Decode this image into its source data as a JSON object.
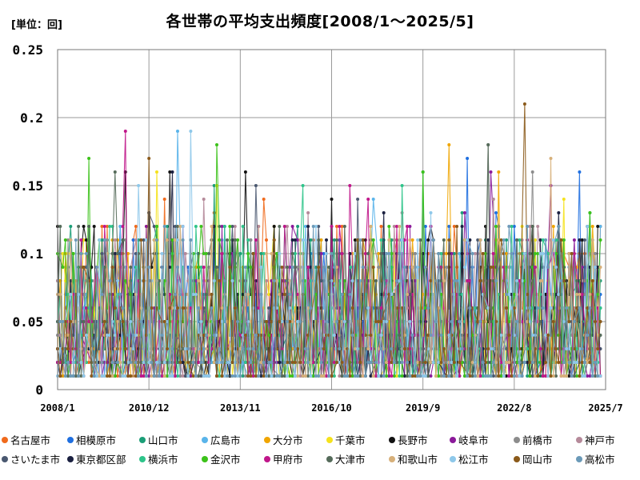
{
  "header": {
    "unit": "[単位：回]",
    "title": "各世帯の平均支出頻度[2008/1～2025/5]"
  },
  "chart_data": {
    "type": "line",
    "title": "各世帯の平均支出頻度[2008/1～2025/5]",
    "unit": "[単位：回]",
    "x_range": [
      "2008/1",
      "2025/7"
    ],
    "x_ticks": [
      "2008/1",
      "2010/12",
      "2013/11",
      "2016/10",
      "2019/9",
      "2022/8",
      "2025/7"
    ],
    "ylim": [
      0,
      0.25
    ],
    "y_ticks": [
      "0",
      "0.05",
      "0.1",
      "0.15",
      "0.2",
      "0.25"
    ],
    "grid": true,
    "legend_position": "bottom",
    "series": [
      {
        "name": "名古屋市",
        "color": "#f06a1c",
        "peaks": [
          [
            "2008/7",
            0.1
          ],
          [
            "2011/6",
            0.14
          ],
          [
            "2014/8",
            0.14
          ],
          [
            "2018/5",
            0.12
          ],
          [
            "2025/5",
            0.12
          ]
        ]
      },
      {
        "name": "相模原市",
        "color": "#1f6fe0",
        "peaks": [
          [
            "2021/2",
            0.17
          ],
          [
            "2024/9",
            0.16
          ],
          [
            "2019/5",
            0.1
          ]
        ]
      },
      {
        "name": "山口市",
        "color": "#1b9e77",
        "peaks": [
          [
            "2009/1",
            0.12
          ],
          [
            "2013/1",
            0.15
          ],
          [
            "2019/9",
            0.16
          ]
        ]
      },
      {
        "name": "広島市",
        "color": "#5ab4ea",
        "peaks": [
          [
            "2011/11",
            0.19
          ],
          [
            "2018/2",
            0.14
          ]
        ]
      },
      {
        "name": "大分市",
        "color": "#f0a500",
        "peaks": [
          [
            "2020/7",
            0.18
          ],
          [
            "2022/2",
            0.16
          ]
        ]
      },
      {
        "name": "千葉市",
        "color": "#f5e21c",
        "peaks": [
          [
            "2011/3",
            0.16
          ],
          [
            "2013/2",
            0.15
          ],
          [
            "2024/3",
            0.14
          ]
        ]
      },
      {
        "name": "長野市",
        "color": "#111111",
        "peaks": [
          [
            "2010/3",
            0.16
          ],
          [
            "2011/8",
            0.16
          ],
          [
            "2014/1",
            0.16
          ],
          [
            "2016/10",
            0.14
          ]
        ]
      },
      {
        "name": "岐阜市",
        "color": "#8b1a9a",
        "peaks": [
          [
            "2021/11",
            0.16
          ],
          [
            "2023/10",
            0.15
          ]
        ]
      },
      {
        "name": "前橋市",
        "color": "#8c8c8c",
        "peaks": [
          [
            "2021/10",
            0.18
          ],
          [
            "2023/3",
            0.16
          ]
        ]
      },
      {
        "name": "神戸市",
        "color": "#b58a9a",
        "peaks": [
          [
            "2012/9",
            0.14
          ],
          [
            "2017/3",
            0.12
          ]
        ]
      },
      {
        "name": "さいたま市",
        "color": "#4a5870",
        "peaks": [
          [
            "2014/5",
            0.15
          ],
          [
            "2017/8",
            0.14
          ]
        ]
      },
      {
        "name": "東京都区部",
        "color": "#1a2040",
        "peaks": [
          [
            "2011/9",
            0.16
          ],
          [
            "2018/6",
            0.13
          ]
        ]
      },
      {
        "name": "横浜市",
        "color": "#2ec48a",
        "peaks": [
          [
            "2015/11",
            0.15
          ],
          [
            "2019/1",
            0.15
          ]
        ]
      },
      {
        "name": "金沢市",
        "color": "#3cc21a",
        "peaks": [
          [
            "2009/1",
            0.17
          ],
          [
            "2013/2",
            0.18
          ],
          [
            "2019/9",
            0.16
          ]
        ]
      },
      {
        "name": "甲府市",
        "color": "#c0168a",
        "peaks": [
          [
            "2010/3",
            0.19
          ],
          [
            "2017/5",
            0.15
          ]
        ]
      },
      {
        "name": "大津市",
        "color": "#556b5a",
        "peaks": [
          [
            "2009/11",
            0.16
          ],
          [
            "2021/10",
            0.18
          ]
        ]
      },
      {
        "name": "和歌山市",
        "color": "#d7b07a",
        "peaks": [
          [
            "2011/2",
            0.11
          ],
          [
            "2023/10",
            0.17
          ]
        ]
      },
      {
        "name": "松江市",
        "color": "#8ec8ea",
        "peaks": [
          [
            "2010/8",
            0.15
          ],
          [
            "2012/4",
            0.19
          ]
        ]
      },
      {
        "name": "岡山市",
        "color": "#8b5a1a",
        "peaks": [
          [
            "2010/12",
            0.17
          ],
          [
            "2022/12",
            0.21
          ]
        ]
      },
      {
        "name": "高松市",
        "color": "#6b9ab8",
        "peaks": [
          [
            "2016/3",
            0.12
          ],
          [
            "2020/3",
            0.1
          ]
        ]
      }
    ]
  }
}
